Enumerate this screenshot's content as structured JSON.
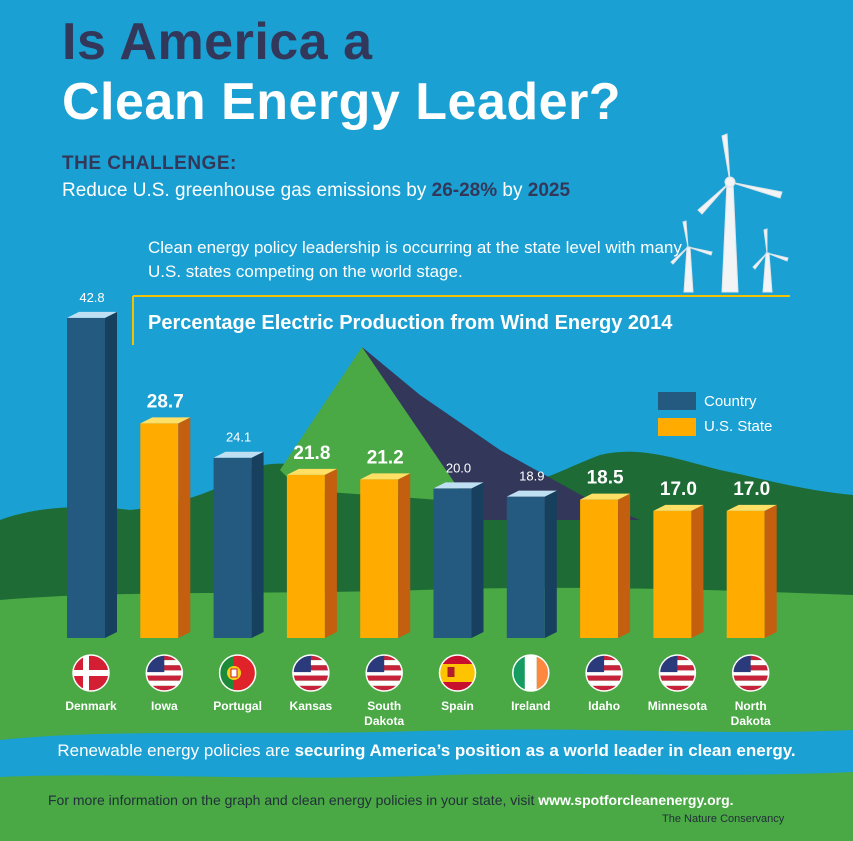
{
  "title": {
    "line1": "Is America a",
    "line2": "Clean Energy Leader?"
  },
  "challenge": {
    "heading": "THE CHALLENGE:",
    "text_prefix": "Reduce U.S. greenhouse gas emissions by ",
    "text_highlight": "26-28%",
    "text_middle": " by ",
    "text_year": "2025"
  },
  "policy_text": "Clean energy policy leadership is occurring at the state level with many U.S. states  competing on the world stage.",
  "legend": {
    "country": "Country",
    "state": "U.S. State"
  },
  "colors": {
    "background": "#1aa0d2",
    "country_front": "#255a80",
    "country_side": "#17405e",
    "country_top": "#bfe0f2",
    "state_front": "#ffab00",
    "state_side": "#c45f10",
    "state_top": "#ffe066",
    "hills": "#1e6b35",
    "grass": "#4aa845",
    "title_dark": "#33385a"
  },
  "chart_data": {
    "type": "bar",
    "title": "Percentage Electric Production from Wind Energy 2014",
    "categories": [
      "Denmark",
      "Iowa",
      "Portugal",
      "Kansas",
      "South Dakota",
      "Spain",
      "Ireland",
      "Idaho",
      "Minnesota",
      "North Dakota"
    ],
    "label_lines": [
      [
        "Denmark"
      ],
      [
        "Iowa"
      ],
      [
        "Portugal"
      ],
      [
        "Kansas"
      ],
      [
        "South",
        "Dakota"
      ],
      [
        "Spain"
      ],
      [
        "Ireland"
      ],
      [
        "Idaho"
      ],
      [
        "Minnesota"
      ],
      [
        "North",
        "Dakota"
      ]
    ],
    "values": [
      42.8,
      28.7,
      24.1,
      21.8,
      21.2,
      20.0,
      18.9,
      18.5,
      17.0,
      17.0
    ],
    "value_labels": [
      "42.8",
      "28.7",
      "24.1",
      "21.8",
      "21.2",
      "20.0",
      "18.9",
      "18.5",
      "17.0",
      "17.0"
    ],
    "kinds": [
      "country",
      "state",
      "country",
      "state",
      "state",
      "country",
      "country",
      "state",
      "state",
      "state"
    ],
    "flags": [
      "denmark-flag",
      "us-flag",
      "portugal-flag",
      "us-flag",
      "us-flag",
      "spain-flag",
      "ireland-flag",
      "us-flag",
      "us-flag",
      "us-flag"
    ],
    "series": [
      {
        "name": "Country"
      },
      {
        "name": "U.S. State"
      }
    ],
    "ylim": [
      0,
      42.8
    ]
  },
  "band": {
    "text_prefix": "Renewable energy policies are ",
    "text_bold": "securing America’s position as a world leader in clean energy."
  },
  "footer": {
    "text": "For more information on the graph and clean energy policies in your state, visit ",
    "url": "www.spotforcleanenergy.org.",
    "credit": "The Nature Conservancy"
  }
}
